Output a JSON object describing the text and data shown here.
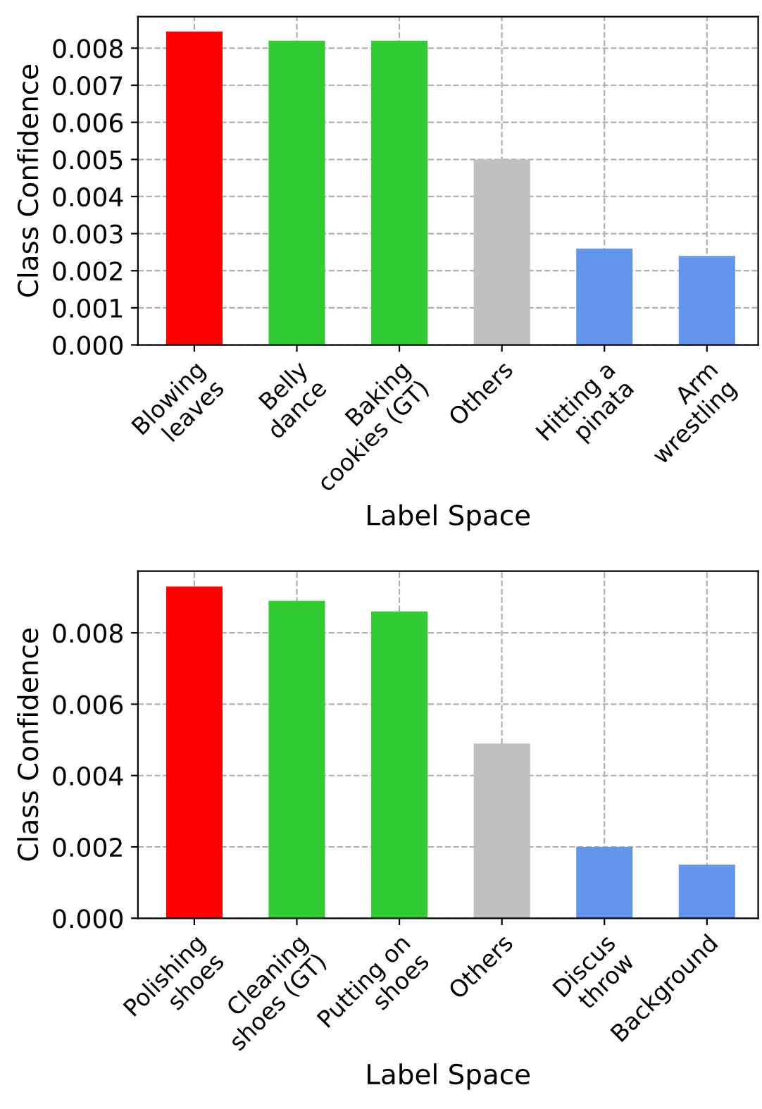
{
  "chart_data": [
    {
      "type": "bar",
      "xlabel": "Label Space",
      "ylabel": "Class Confidence",
      "categories": [
        "Blowing\nleaves",
        "Belly\ndance",
        "Baking\ncookies (GT)",
        "Others",
        "Hitting a\npinata",
        "Arm\nwrestling"
      ],
      "values": [
        0.00845,
        0.0082,
        0.0082,
        0.005,
        0.0026,
        0.0024
      ],
      "colors": [
        "#ff0000",
        "#32cd32",
        "#32cd32",
        "#c0c0c0",
        "#6495ed",
        "#6495ed"
      ],
      "ylim": [
        0,
        0.00885
      ],
      "yticks": [
        {
          "value": 0,
          "label": "0.000"
        },
        {
          "value": 0.001,
          "label": "0.001"
        },
        {
          "value": 0.002,
          "label": "0.002"
        },
        {
          "value": 0.003,
          "label": "0.003"
        },
        {
          "value": 0.004,
          "label": "0.004"
        },
        {
          "value": 0.005,
          "label": "0.005"
        },
        {
          "value": 0.006,
          "label": "0.006"
        },
        {
          "value": 0.007,
          "label": "0.007"
        },
        {
          "value": 0.008,
          "label": "0.008"
        }
      ],
      "grid": true,
      "line_style": "dashed"
    },
    {
      "type": "bar",
      "xlabel": "Label Space",
      "ylabel": "Class Confidence",
      "categories": [
        "Polishing\nshoes",
        "Cleaning\nshoes (GT)",
        "Putting on\nshoes",
        "Others",
        "Discus\nthrow",
        "Background"
      ],
      "values": [
        0.0093,
        0.0089,
        0.0086,
        0.0049,
        0.002,
        0.0015
      ],
      "colors": [
        "#ff0000",
        "#32cd32",
        "#32cd32",
        "#c0c0c0",
        "#6495ed",
        "#6495ed"
      ],
      "ylim": [
        0,
        0.00973
      ],
      "yticks": [
        {
          "value": 0,
          "label": "0.000"
        },
        {
          "value": 0.002,
          "label": "0.002"
        },
        {
          "value": 0.004,
          "label": "0.004"
        },
        {
          "value": 0.006,
          "label": "0.006"
        },
        {
          "value": 0.008,
          "label": "0.008"
        }
      ],
      "grid": true,
      "line_style": "dashed"
    }
  ]
}
